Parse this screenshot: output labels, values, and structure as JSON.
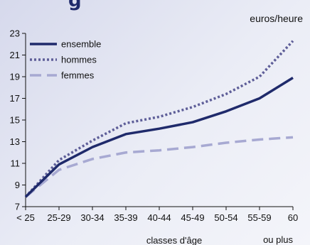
{
  "header": {
    "title_fragment": "g",
    "unit": "euros/heure"
  },
  "chart_data": {
    "type": "line",
    "categories": [
      "< 25",
      "25-29",
      "30-34",
      "35-39",
      "40-44",
      "45-49",
      "50-54",
      "55-59",
      "60"
    ],
    "last_category_suffix": "ou plus",
    "xlabel": "classes d'âge",
    "ylabel": "",
    "ylim": [
      7,
      23
    ],
    "yticks": [
      7,
      9,
      11,
      13,
      15,
      17,
      19,
      21,
      23
    ],
    "grid": false,
    "legend_position": "top-left",
    "series": [
      {
        "name": "ensemble",
        "style": "solid",
        "color": "#1f2a6b",
        "values": [
          7.9,
          10.9,
          12.5,
          13.7,
          14.2,
          14.8,
          15.8,
          17.0,
          18.9
        ]
      },
      {
        "name": "hommes",
        "style": "dotted",
        "color": "#5e5e98",
        "values": [
          7.9,
          11.3,
          13.1,
          14.7,
          15.3,
          16.2,
          17.4,
          19.0,
          22.3
        ]
      },
      {
        "name": "femmes",
        "style": "dashed",
        "color": "#a7a9d2",
        "values": [
          7.9,
          10.4,
          11.4,
          12.0,
          12.2,
          12.5,
          12.9,
          13.2,
          13.4
        ]
      }
    ]
  }
}
